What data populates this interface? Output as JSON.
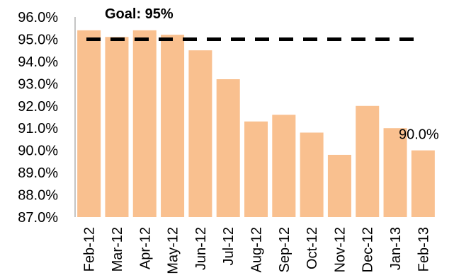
{
  "chart_data": {
    "type": "bar",
    "categories": [
      "Feb-12",
      "Mar-12",
      "Apr-12",
      "May-12",
      "Jun-12",
      "Jul-12",
      "Aug-12",
      "Sep-12",
      "Oct-12",
      "Nov-12",
      "Dec-12",
      "Jan-13",
      "Feb-13"
    ],
    "values": [
      95.4,
      95.1,
      95.4,
      95.2,
      94.5,
      93.2,
      91.3,
      91.6,
      90.8,
      89.8,
      92.0,
      91.0,
      90.0
    ],
    "title": "",
    "xlabel": "",
    "ylabel": "",
    "ylim": [
      87.0,
      96.0
    ],
    "yticks": [
      "87.0%",
      "88.0%",
      "89.0%",
      "90.0%",
      "91.0%",
      "92.0%",
      "93.0%",
      "94.0%",
      "95.0%",
      "96.0%"
    ],
    "goal": {
      "value": 95.0,
      "label": "Goal: 95%"
    },
    "data_labels": [
      {
        "category": "Feb-13",
        "text": "90.0%"
      }
    ],
    "grid": false,
    "legend": "none",
    "colors": {
      "bar": "#F9C08F",
      "goal_line": "#000000",
      "axis": "#888888"
    }
  }
}
